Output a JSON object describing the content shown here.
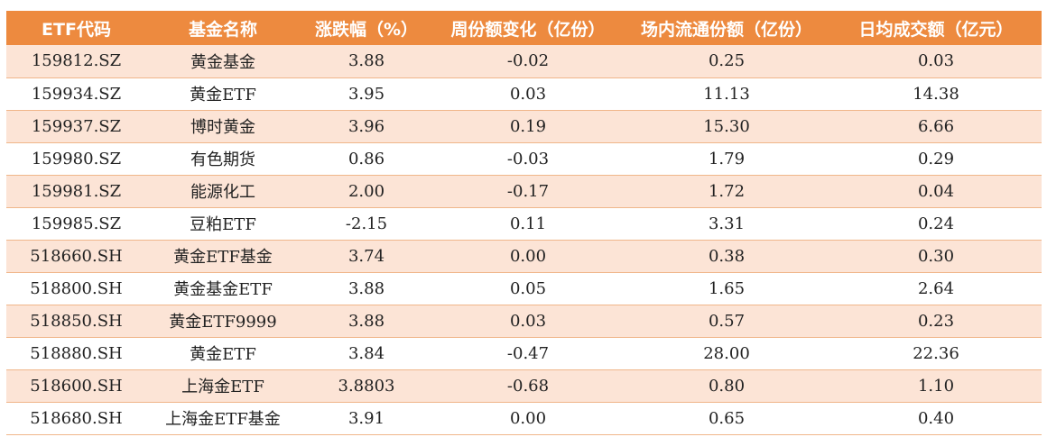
{
  "table": {
    "headers": [
      "ETF代码",
      "基金名称",
      "涨跌幅（%）",
      "周份额变化（亿份）",
      "场内流通份额（亿份）",
      "日均成交额（亿元）"
    ],
    "rows": [
      [
        "159812.SZ",
        "黄金基金",
        "3.88",
        "-0.02",
        "0.25",
        "0.03"
      ],
      [
        "159934.SZ",
        "黄金ETF",
        "3.95",
        "0.03",
        "11.13",
        "14.38"
      ],
      [
        "159937.SZ",
        "博时黄金",
        "3.96",
        "0.19",
        "15.30",
        "6.66"
      ],
      [
        "159980.SZ",
        "有色期货",
        "0.86",
        "-0.03",
        "1.79",
        "0.29"
      ],
      [
        "159981.SZ",
        "能源化工",
        "2.00",
        "-0.17",
        "1.72",
        "0.04"
      ],
      [
        "159985.SZ",
        "豆粕ETF",
        "-2.15",
        "0.11",
        "3.31",
        "0.24"
      ],
      [
        "518660.SH",
        "黄金ETF基金",
        "3.74",
        "0.00",
        "0.38",
        "0.30"
      ],
      [
        "518800.SH",
        "黄金基金ETF",
        "3.88",
        "0.05",
        "1.65",
        "2.64"
      ],
      [
        "518850.SH",
        "黄金ETF9999",
        "3.88",
        "0.03",
        "0.57",
        "0.23"
      ],
      [
        "518880.SH",
        "黄金ETF",
        "3.84",
        "-0.47",
        "28.00",
        "22.36"
      ],
      [
        "518600.SH",
        "上海金ETF",
        "3.8803",
        "-0.68",
        "0.80",
        "1.10"
      ],
      [
        "518680.SH",
        "上海金ETF基金",
        "3.91",
        "0.00",
        "0.65",
        "0.40"
      ]
    ]
  },
  "colors": {
    "header_bg": "#ed8a3f",
    "header_text": "#ffffff",
    "row_band": "#fce4d6",
    "row_plain": "#ffffff",
    "row_divider": "#f0b68a"
  }
}
